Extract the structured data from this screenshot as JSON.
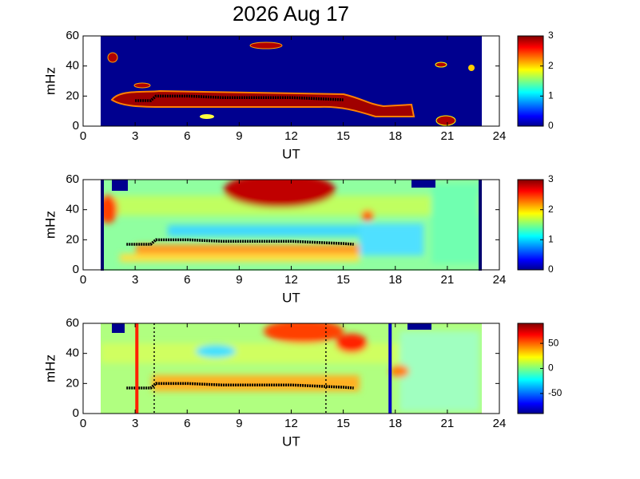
{
  "chart_data": [
    {
      "type": "heatmap",
      "title": "2026 Aug 17",
      "xlabel": "UT",
      "ylabel": "mHz",
      "xlim": [
        0,
        24
      ],
      "xticks": [
        0,
        3,
        6,
        9,
        12,
        15,
        18,
        21,
        24
      ],
      "ylim": [
        0,
        60
      ],
      "yticks": [
        0,
        20,
        40,
        60
      ],
      "clim": [
        0,
        3
      ],
      "cticks": [
        0,
        1,
        2,
        3
      ],
      "ridge": {
        "color": "#000000",
        "x": [
          3,
          3.5,
          3.9,
          4.2,
          5,
          6,
          7,
          8,
          9,
          10,
          11,
          12,
          13,
          14,
          15
        ],
        "values": [
          17,
          17,
          17,
          20,
          20,
          20,
          19.5,
          19,
          19,
          19,
          19,
          19,
          18.5,
          18,
          17.5
        ]
      }
    },
    {
      "type": "heatmap",
      "xlabel": "UT",
      "ylabel": "mHz",
      "xlim": [
        0,
        24
      ],
      "xticks": [
        0,
        3,
        6,
        9,
        12,
        15,
        18,
        21,
        24
      ],
      "ylim": [
        0,
        60
      ],
      "yticks": [
        0,
        20,
        40,
        60
      ],
      "clim": [
        0,
        3
      ],
      "cticks": [
        0,
        1,
        2,
        3
      ],
      "ridge": {
        "color": "#000000",
        "x": [
          2.5,
          3,
          3.5,
          3.9,
          4.2,
          5,
          6,
          7,
          8,
          9,
          10,
          11,
          12,
          13,
          14,
          15,
          15.6
        ],
        "values": [
          17,
          17,
          17,
          17,
          20,
          20,
          20,
          19.5,
          19,
          19,
          19,
          19,
          19,
          18.5,
          18,
          17.5,
          17
        ]
      }
    },
    {
      "type": "heatmap",
      "xlabel": "UT",
      "ylabel": "mHz",
      "xlim": [
        0,
        24
      ],
      "xticks": [
        0,
        3,
        6,
        9,
        12,
        15,
        18,
        21,
        24
      ],
      "ylim": [
        0,
        60
      ],
      "yticks": [
        0,
        20,
        40,
        60
      ],
      "clim": [
        -90,
        90
      ],
      "cticks": [
        -50,
        0,
        50
      ],
      "ridge": {
        "color": "#000000",
        "x": [
          2.5,
          3,
          3.5,
          3.9,
          4.2,
          5,
          6,
          7,
          8,
          9,
          10,
          11,
          12,
          13,
          14,
          15,
          15.6
        ],
        "values": [
          17,
          17,
          17,
          17,
          20,
          20,
          20,
          19.5,
          19,
          19,
          19,
          19,
          19,
          18.5,
          18,
          17.5,
          17
        ]
      },
      "vlines": [
        {
          "x": 3.1,
          "color": "#ff2000",
          "dashed": false
        },
        {
          "x": 4.1,
          "color": "#000000",
          "dashed": true
        },
        {
          "x": 14,
          "color": "#000000",
          "dashed": true
        },
        {
          "x": 17.7,
          "color": "#0000c0",
          "dashed": false
        }
      ]
    }
  ]
}
